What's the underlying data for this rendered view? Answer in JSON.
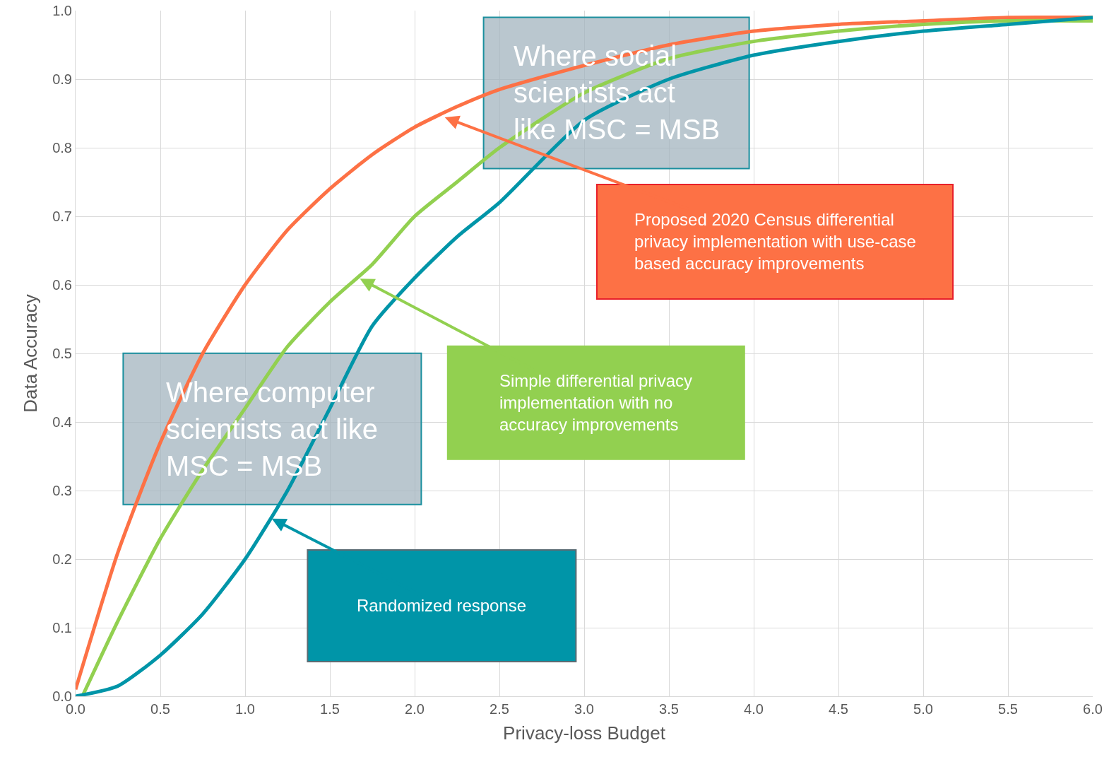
{
  "chart_data": {
    "type": "line",
    "xlabel": "Privacy-loss Budget",
    "ylabel": "Data Accuracy",
    "xlim": [
      0,
      6
    ],
    "xticks": [
      {
        "value": 0,
        "label": "0.0"
      },
      0.5,
      {
        "value": 1,
        "label": "1.0"
      },
      1.5,
      {
        "value": 2,
        "label": "2.0"
      },
      2.5,
      {
        "value": 3,
        "label": "3.0"
      },
      3.5,
      {
        "value": 4,
        "label": "4.0"
      },
      4.5,
      {
        "value": 5,
        "label": "5.0"
      },
      5.5,
      {
        "value": 6,
        "label": "6.0"
      }
    ],
    "ylim": [
      0,
      1
    ],
    "yticks": [
      {
        "value": 0,
        "label": "0.0"
      },
      0.1,
      0.2,
      0.3,
      0.4,
      0.5,
      0.6,
      0.7,
      0.8,
      0.9,
      {
        "value": 1,
        "label": "1.0"
      }
    ],
    "grid": true,
    "marker": "none",
    "line_style": "solid",
    "series": [
      {
        "color": "#fd7145",
        "x": [
          0,
          0.25,
          0.5,
          0.75,
          1,
          1.25,
          1.5,
          1.75,
          2,
          2.25,
          2.5,
          3,
          3.5,
          4,
          4.5,
          5,
          5.5,
          6
        ],
        "values": [
          0.01,
          0.21,
          0.37,
          0.5,
          0.6,
          0.68,
          0.74,
          0.79,
          0.83,
          0.86,
          0.885,
          0.92,
          0.95,
          0.97,
          0.98,
          0.985,
          0.99,
          0.99
        ]
      },
      {
        "color": "#92d050",
        "x": [
          0.04,
          0.25,
          0.5,
          0.75,
          1,
          1.25,
          1.5,
          1.75,
          2,
          2.25,
          2.5,
          3,
          3.5,
          4,
          4.5,
          5,
          5.5,
          6
        ],
        "values": [
          0,
          0.11,
          0.23,
          0.33,
          0.42,
          0.51,
          0.575,
          0.63,
          0.7,
          0.75,
          0.8,
          0.88,
          0.93,
          0.955,
          0.97,
          0.98,
          0.985,
          0.985
        ]
      },
      {
        "color": "#0095a8",
        "x": [
          0,
          0.25,
          0.5,
          0.75,
          1,
          1.25,
          1.5,
          1.75,
          2,
          2.25,
          2.5,
          3,
          3.5,
          4,
          4.5,
          5,
          5.5,
          6
        ],
        "values": [
          0,
          0.015,
          0.06,
          0.12,
          0.2,
          0.3,
          0.42,
          0.54,
          0.61,
          0.67,
          0.72,
          0.84,
          0.9,
          0.935,
          0.955,
          0.97,
          0.98,
          0.99
        ]
      }
    ],
    "annotations": [
      "Where social\nscientists act\nlike MSC = MSB",
      "Where computer\nscientists act like\nMSC = MSB",
      {
        "text": "Proposed 2020 Census differential\nprivacy implementation with use-case\nbased accuracy improvements",
        "x": 2.17,
        "y": 0.845
      },
      {
        "text": "Simple differential privacy\nimplementation with no\naccuracy improvements",
        "x": 1.67,
        "y": 0.61
      },
      {
        "text": "Randomized response",
        "x": 1.15,
        "y": 0.26
      }
    ]
  }
}
